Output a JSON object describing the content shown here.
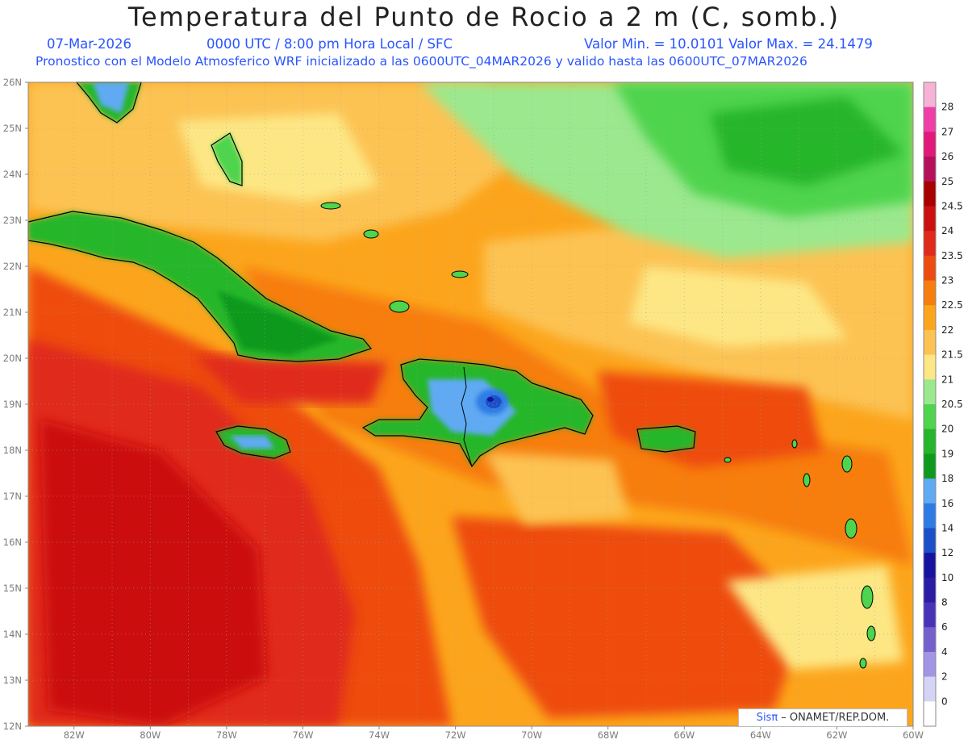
{
  "title": "Temperatura del Punto de Rocio a 2 m (C, somb.)",
  "subtitle": {
    "date": "07-Mar-2026",
    "time": "0000 UTC / 8:00 pm Hora Local / SFC",
    "minmax": "Valor Min. = 10.0101   Valor Max. = 24.1479",
    "model": "Pronostico con el Modelo Atmosferico WRF inicializado a las 0600UTC_04MAR2026 y valido hasta las  0600UTC_07MAR2026"
  },
  "map": {
    "lat_labels": [
      "26N",
      "25N",
      "24N",
      "23N",
      "22N",
      "21N",
      "20N",
      "19N",
      "18N",
      "17N",
      "16N",
      "15N",
      "14N",
      "13N",
      "12N"
    ],
    "lon_labels": [
      "82W",
      "80W",
      "78W",
      "76W",
      "74W",
      "72W",
      "70W",
      "68W",
      "66W",
      "64W",
      "62W",
      "60W"
    ],
    "lat_range": [
      12,
      26
    ],
    "lon_range": [
      -83.2,
      -60
    ],
    "grid": true
  },
  "colorbar": {
    "labels": [
      "28",
      "27",
      "26",
      "25",
      "24.5",
      "24",
      "23.5",
      "23",
      "22.5",
      "22",
      "21.5",
      "21",
      "20.5",
      "20",
      "19",
      "18",
      "16",
      "14",
      "12",
      "10",
      "8",
      "6",
      "4",
      "2",
      "0"
    ],
    "colors": [
      "#f7b2d6",
      "#ef3fa6",
      "#e0197a",
      "#b5115a",
      "#a80000",
      "#cc1010",
      "#e02a1a",
      "#ee4b10",
      "#f77d0c",
      "#fca51c",
      "#fcc352",
      "#fde785",
      "#9be88e",
      "#4fd44e",
      "#25b62c",
      "#0f9a1d",
      "#5faaf2",
      "#2e7be6",
      "#1a50c8",
      "#16139e",
      "#2b1ca6",
      "#4733b8",
      "#7560cc",
      "#a395e6",
      "#d4d4f7",
      "#ffffff"
    ]
  },
  "credit": {
    "logo": "Sisπ",
    "text": " – ONAMET/REP.DOM."
  }
}
